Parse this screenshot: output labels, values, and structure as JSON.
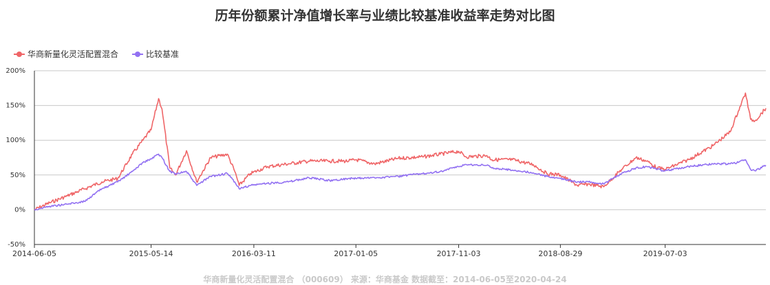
{
  "chart_data": {
    "type": "line",
    "title": "历年份额累计净值增长率与业绩比较基准收益率走势对比图",
    "ylim": [
      -50,
      200
    ],
    "yticks": [
      -50,
      0,
      50,
      100,
      150,
      200
    ],
    "ytick_labels": [
      "-50%",
      "0%",
      "50%",
      "100%",
      "150%",
      "200%"
    ],
    "xlim": [
      "2014-06-05",
      "2020-04-24"
    ],
    "xticks": [
      "2014-06-05",
      "2015-05-14",
      "2016-03-11",
      "2017-01-05",
      "2017-11-03",
      "2018-08-29",
      "2019-07-03"
    ],
    "grid": true,
    "legend_position": "top-left",
    "series": [
      {
        "name": "华商新量化灵活配置混合",
        "color": "#ef6567",
        "x": [
          "2014-06-05",
          "2014-07-20",
          "2014-09-10",
          "2014-10-30",
          "2014-12-20",
          "2015-02-05",
          "2015-03-20",
          "2015-04-20",
          "2015-05-14",
          "2015-06-05",
          "2015-06-15",
          "2015-07-08",
          "2015-07-25",
          "2015-08-26",
          "2015-09-25",
          "2015-11-05",
          "2015-12-24",
          "2016-01-15",
          "2016-01-28",
          "2016-03-01",
          "2016-04-20",
          "2016-06-20",
          "2016-08-20",
          "2016-10-20",
          "2016-12-15",
          "2017-01-05",
          "2017-03-01",
          "2017-05-10",
          "2017-07-20",
          "2017-09-10",
          "2017-11-03",
          "2017-11-25",
          "2018-01-25",
          "2018-02-09",
          "2018-04-10",
          "2018-06-10",
          "2018-07-20",
          "2018-08-29",
          "2018-10-18",
          "2018-11-20",
          "2019-01-03",
          "2019-02-25",
          "2019-04-08",
          "2019-05-10",
          "2019-06-10",
          "2019-07-03",
          "2019-09-10",
          "2019-11-20",
          "2020-01-10",
          "2020-02-03",
          "2020-02-24",
          "2020-03-10",
          "2020-03-23",
          "2020-04-24"
        ],
        "values": [
          0,
          10,
          20,
          30,
          40,
          45,
          80,
          100,
          115,
          160,
          145,
          60,
          50,
          85,
          40,
          75,
          80,
          55,
          35,
          52,
          62,
          66,
          70,
          70,
          70,
          72,
          66,
          74,
          76,
          80,
          84,
          76,
          78,
          72,
          72,
          65,
          52,
          50,
          35,
          37,
          33,
          58,
          75,
          70,
          60,
          58,
          72,
          92,
          112,
          142,
          168,
          130,
          128,
          146
        ]
      },
      {
        "name": "比较基准",
        "color": "#9271f2",
        "x": [
          "2014-06-05",
          "2014-07-20",
          "2014-09-10",
          "2014-10-30",
          "2014-12-20",
          "2015-02-05",
          "2015-03-20",
          "2015-04-20",
          "2015-05-14",
          "2015-06-05",
          "2015-06-15",
          "2015-07-08",
          "2015-07-25",
          "2015-08-26",
          "2015-09-25",
          "2015-11-05",
          "2015-12-24",
          "2016-01-15",
          "2016-01-28",
          "2016-03-01",
          "2016-04-20",
          "2016-06-20",
          "2016-08-20",
          "2016-10-20",
          "2016-12-15",
          "2017-01-05",
          "2017-03-01",
          "2017-05-10",
          "2017-07-20",
          "2017-09-10",
          "2017-11-03",
          "2017-11-25",
          "2018-01-25",
          "2018-02-09",
          "2018-04-10",
          "2018-06-10",
          "2018-07-20",
          "2018-08-29",
          "2018-10-18",
          "2018-11-20",
          "2019-01-03",
          "2019-02-25",
          "2019-04-08",
          "2019-05-10",
          "2019-06-10",
          "2019-07-03",
          "2019-09-10",
          "2019-11-20",
          "2020-01-10",
          "2020-02-03",
          "2020-02-24",
          "2020-03-10",
          "2020-03-23",
          "2020-04-24"
        ],
        "values": [
          0,
          5,
          8,
          12,
          30,
          40,
          55,
          68,
          73,
          80,
          75,
          55,
          52,
          55,
          35,
          48,
          52,
          40,
          30,
          35,
          38,
          40,
          46,
          42,
          45,
          45,
          46,
          48,
          52,
          55,
          62,
          65,
          64,
          60,
          57,
          53,
          48,
          45,
          40,
          40,
          37,
          52,
          60,
          62,
          58,
          56,
          62,
          66,
          66,
          68,
          72,
          58,
          56,
          64
        ]
      }
    ]
  },
  "legend": {
    "items": [
      {
        "label": "华商新量化灵活配置混合",
        "color": "#ef6567"
      },
      {
        "label": "比较基准",
        "color": "#9271f2"
      }
    ]
  },
  "footer": {
    "text": "华商新量化灵活配置混合  （000609）  来源：华商基金  数据截至：2014-06-05至2020-04-24"
  }
}
